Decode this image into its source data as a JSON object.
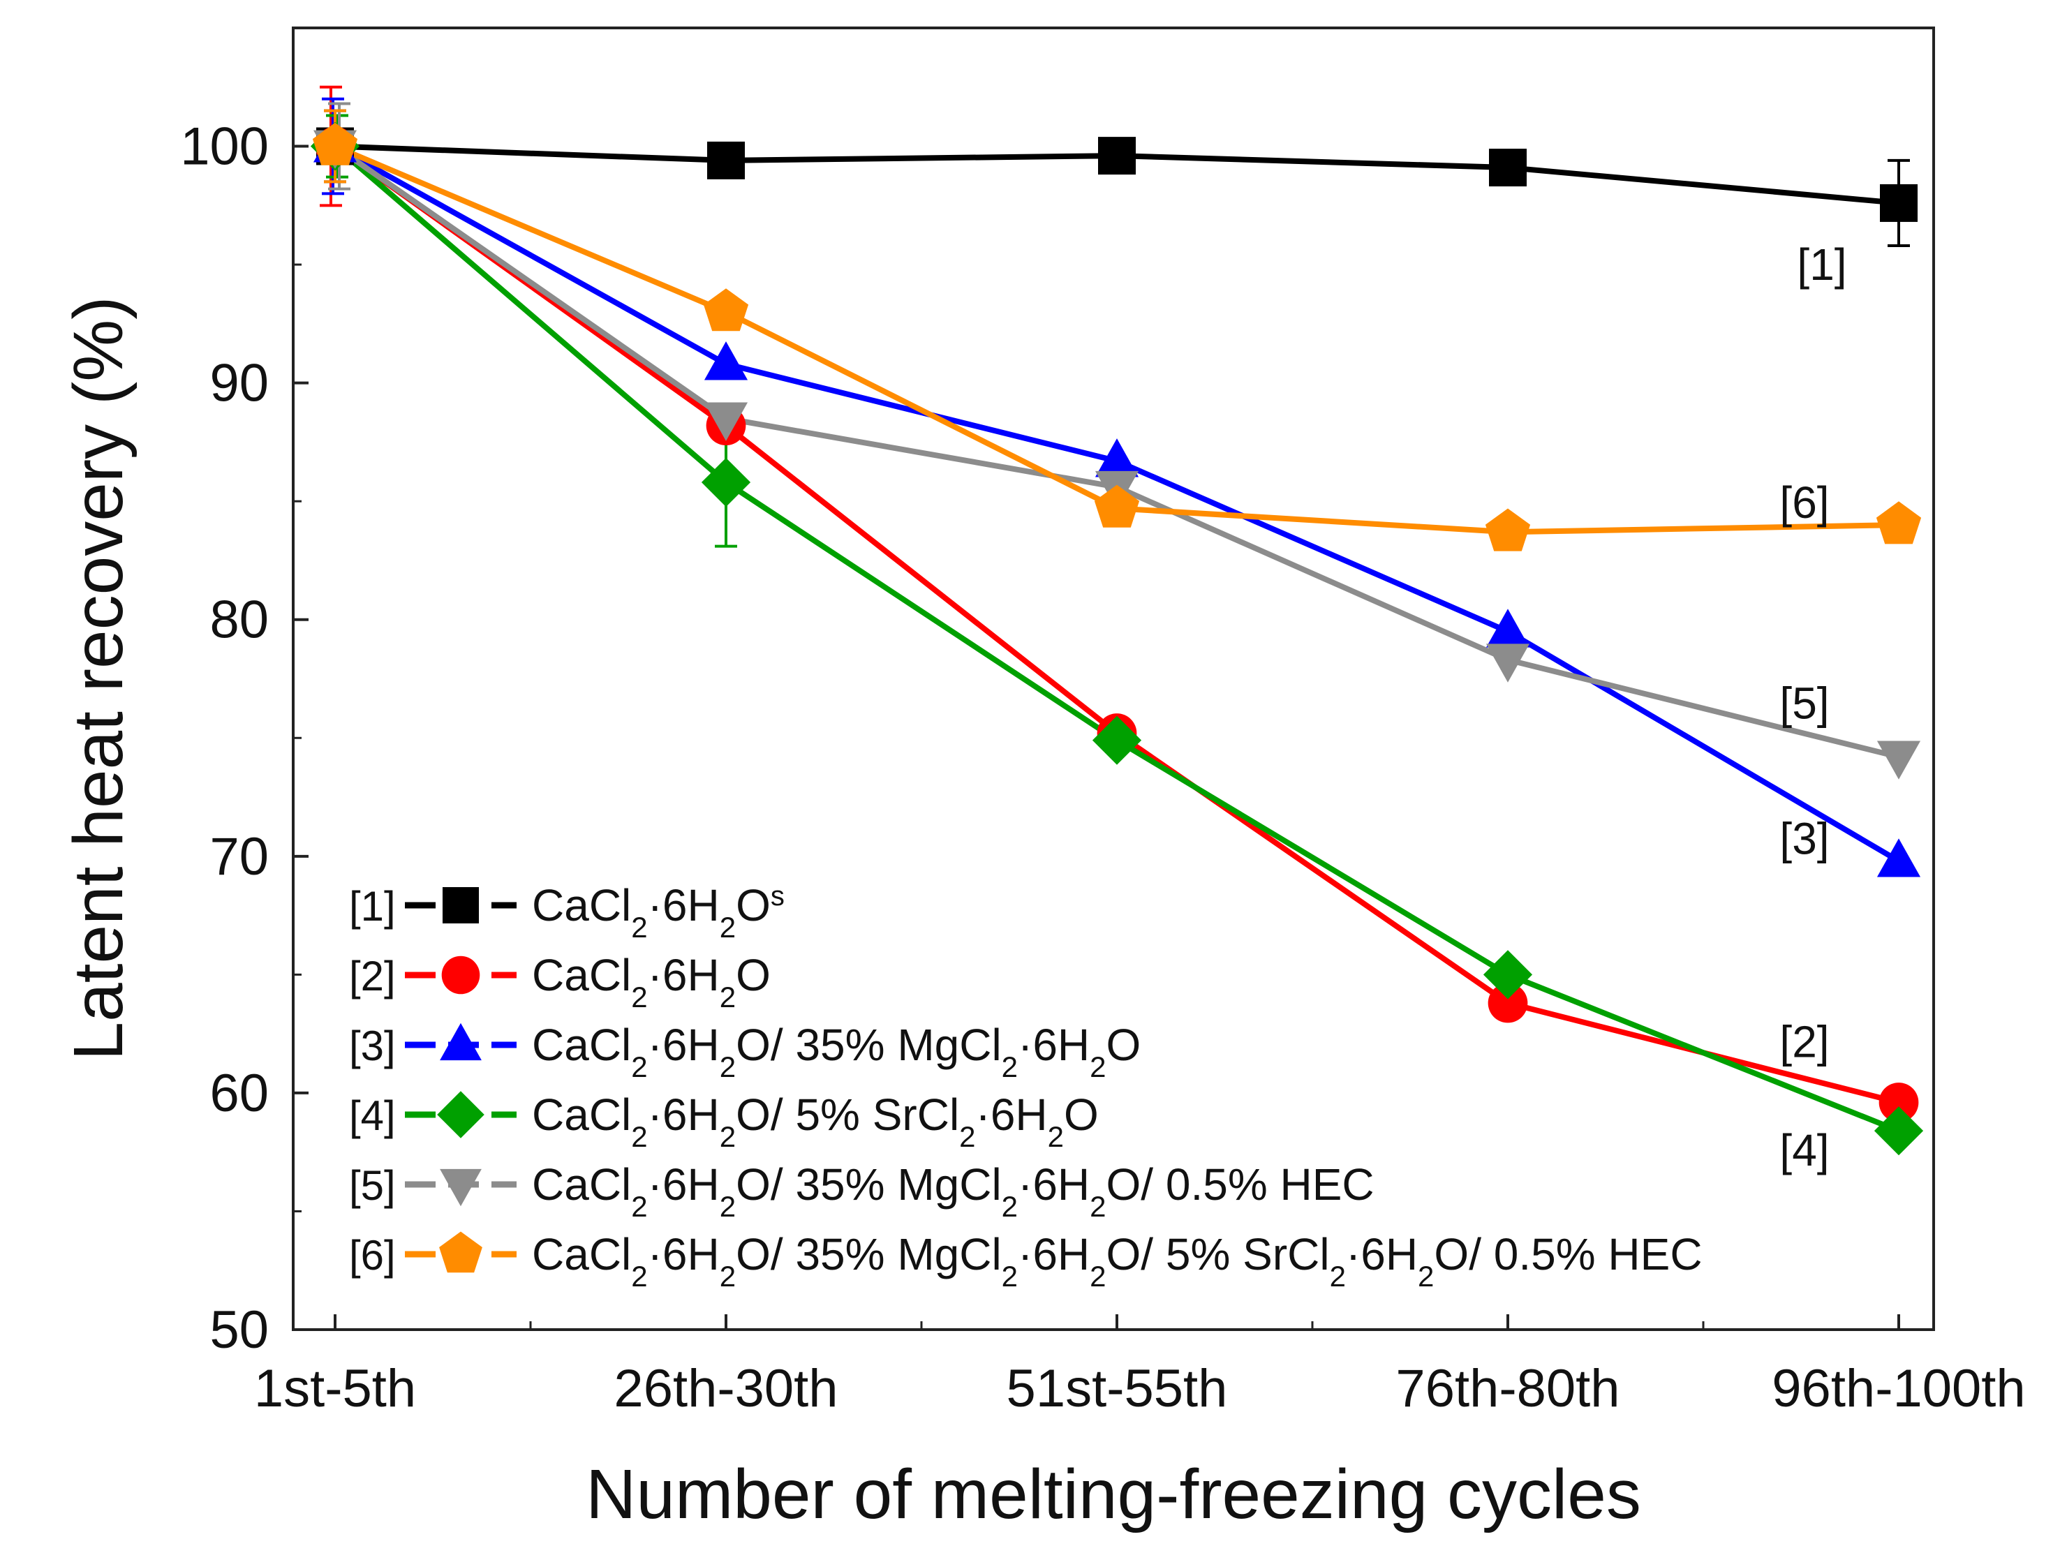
{
  "chart_data": {
    "type": "line",
    "title": "",
    "xlabel": "Number of melting-freezing cycles",
    "ylabel": "Latent heat recovery (%)",
    "categories": [
      "1st-5th",
      "26th-30th",
      "51st-55th",
      "76th-80th",
      "96th-100th"
    ],
    "ylim": [
      50,
      105
    ],
    "yticks": [
      50,
      60,
      70,
      80,
      90,
      100
    ],
    "grid": false,
    "legend_position": "bottom-left",
    "series": [
      {
        "id": "1",
        "tag": "[1]",
        "name": "CaCl2·6H2O",
        "superscript": "s",
        "color": "#000000",
        "marker": "square",
        "values": [
          100,
          99.4,
          99.6,
          99.1,
          97.6
        ],
        "errors": [
          1.5,
          0,
          0,
          0,
          1.8
        ],
        "end_label": "[1]"
      },
      {
        "id": "2",
        "tag": "[2]",
        "name": "CaCl2·6H2O",
        "color": "#ff0000",
        "marker": "circle",
        "values": [
          100,
          88.2,
          75.2,
          63.8,
          59.6
        ],
        "errors": [
          2.5,
          0,
          0,
          0,
          0
        ],
        "end_label": "[2]"
      },
      {
        "id": "3",
        "tag": "[3]",
        "name": "CaCl2·6H2O/ 35% MgCl2·6H2O",
        "color": "#0000ff",
        "marker": "triangle-up",
        "values": [
          100,
          90.8,
          86.7,
          79.5,
          69.8
        ],
        "errors": [
          2.0,
          0,
          0,
          0,
          0
        ],
        "end_label": "[3]"
      },
      {
        "id": "4",
        "tag": "[4]",
        "name": "CaCl2·6H2O/ 5% SrCl2·6H2O",
        "color": "#00a000",
        "marker": "diamond",
        "values": [
          100,
          85.8,
          74.9,
          65.0,
          58.4
        ],
        "errors": [
          1.3,
          2.7,
          0,
          0,
          0
        ],
        "end_label": "[4]"
      },
      {
        "id": "5",
        "tag": "[5]",
        "name": "CaCl2·6H2O/ 35% MgCl2·6H2O/ 0.5% HEC",
        "color": "#8c8c8c",
        "marker": "triangle-down",
        "values": [
          100,
          88.5,
          85.6,
          78.3,
          74.2
        ],
        "errors": [
          1.8,
          0,
          0,
          0,
          0
        ],
        "end_label": "[5]"
      },
      {
        "id": "6",
        "tag": "[6]",
        "name": "CaCl2·6H2O/ 35% MgCl2·6H2O/ 5% SrCl2·6H2O/ 0.5% HEC",
        "color": "#ff8c00",
        "marker": "pentagon",
        "values": [
          100,
          93.0,
          84.7,
          83.7,
          84.0
        ],
        "errors": [
          1.5,
          0,
          0,
          0,
          0
        ],
        "end_label": "[6]"
      }
    ]
  }
}
